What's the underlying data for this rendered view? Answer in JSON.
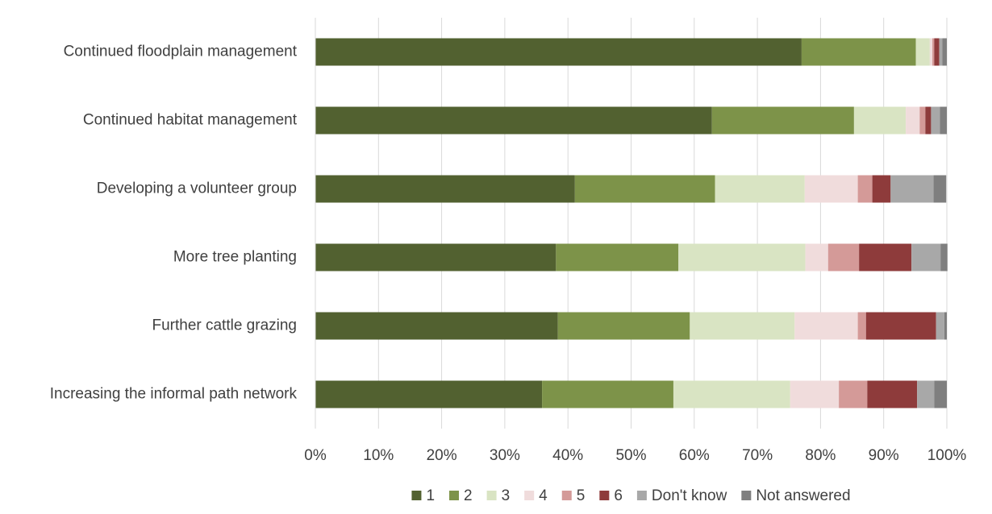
{
  "chart_data": {
    "type": "bar",
    "orientation": "horizontal",
    "stacked": true,
    "categories": [
      "Continued floodplain management",
      "Continued habitat management",
      "Developing a volunteer group",
      "More tree planting",
      "Further cattle grazing",
      "Increasing the informal path network"
    ],
    "series": [
      {
        "name": "1",
        "color": "#526130",
        "values": [
          77.0,
          62.8,
          41.1,
          38.1,
          38.4,
          35.9
        ]
      },
      {
        "name": "2",
        "color": "#7d9349",
        "values": [
          18.1,
          22.5,
          22.2,
          19.4,
          20.9,
          20.8
        ]
      },
      {
        "name": "3",
        "color": "#d9e4c3",
        "values": [
          2.2,
          8.2,
          14.2,
          20.1,
          16.6,
          18.5
        ]
      },
      {
        "name": "4",
        "color": "#f0dcdc",
        "values": [
          0.4,
          2.2,
          8.4,
          3.6,
          10.0,
          7.7
        ]
      },
      {
        "name": "5",
        "color": "#d49a98",
        "values": [
          0.3,
          0.9,
          2.3,
          4.9,
          1.3,
          4.5
        ]
      },
      {
        "name": "6",
        "color": "#8e3b3b",
        "values": [
          0.8,
          0.9,
          2.9,
          8.3,
          11.1,
          7.9
        ]
      },
      {
        "name": "Don't know",
        "color": "#a8a8a8",
        "values": [
          0.5,
          1.4,
          6.8,
          4.6,
          1.3,
          2.7
        ]
      },
      {
        "name": "Not answered",
        "color": "#7f7f7f",
        "values": [
          0.7,
          1.1,
          2.0,
          1.1,
          0.4,
          2.0
        ]
      }
    ],
    "xlim": [
      0,
      100
    ],
    "xticks": [
      {
        "value": 0,
        "label": "0%"
      },
      {
        "value": 10,
        "label": "10%"
      },
      {
        "value": 20,
        "label": "20%"
      },
      {
        "value": 30,
        "label": "30%"
      },
      {
        "value": 40,
        "label": "40%"
      },
      {
        "value": 50,
        "label": "50%"
      },
      {
        "value": 60,
        "label": "60%"
      },
      {
        "value": 70,
        "label": "70%"
      },
      {
        "value": 80,
        "label": "80%"
      },
      {
        "value": 90,
        "label": "90%"
      },
      {
        "value": 100,
        "label": "100%"
      }
    ],
    "grid": true,
    "legend": "bottom"
  }
}
